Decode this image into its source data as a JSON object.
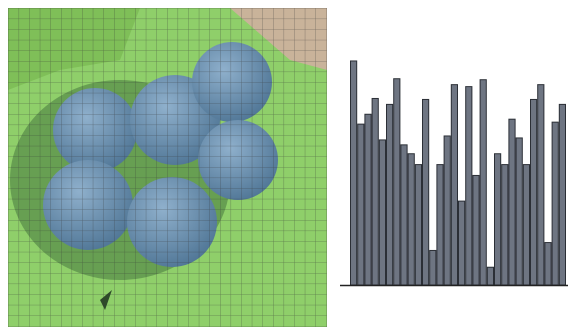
{
  "chart_data": {
    "type": "bar",
    "values": [
      227,
      163,
      173,
      189,
      147,
      183,
      209,
      142,
      133,
      122,
      188,
      35,
      122,
      151,
      203,
      85,
      201,
      111,
      208,
      18,
      133,
      122,
      168,
      149,
      122,
      188,
      203,
      43,
      165,
      183
    ],
    "color": "#6e7582",
    "ylim": [
      0,
      230
    ]
  }
}
